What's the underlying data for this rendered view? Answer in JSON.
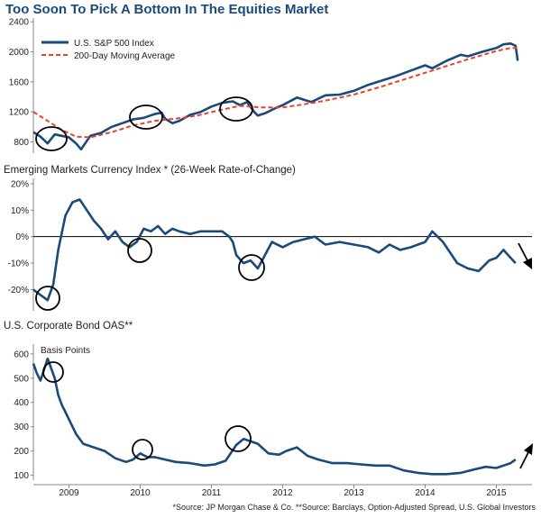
{
  "title": "Too Soon To Pick A Bottom In The Equities Market",
  "footer": "*Source: JP Morgan Chase & Co.  **Source: Barclays, Option-Adjusted Spread, U.S. Global Investors",
  "colors": {
    "series": "#1b4a7a",
    "moving_average": "#e8432e",
    "circle": "#000000",
    "axis": "#888888"
  },
  "chart_data": [
    {
      "type": "line",
      "title": "",
      "xlabel": "",
      "ylabel": "",
      "ylim": [
        650,
        2450
      ],
      "y_ticks": [
        800,
        1200,
        1600,
        2000,
        2400
      ],
      "grid": false,
      "legend": "top-left",
      "series": [
        {
          "name": "U.S. S&P 500 Index",
          "x": [
            2008.5,
            2008.6,
            2008.7,
            2008.8,
            2008.9,
            2009.0,
            2009.1,
            2009.17,
            2009.3,
            2009.45,
            2009.6,
            2009.75,
            2009.9,
            2010.05,
            2010.2,
            2010.3,
            2010.35,
            2010.45,
            2010.55,
            2010.7,
            2010.85,
            2011.0,
            2011.15,
            2011.3,
            2011.4,
            2011.5,
            2011.6,
            2011.65,
            2011.75,
            2011.9,
            2012.0,
            2012.2,
            2012.4,
            2012.6,
            2012.8,
            2013.0,
            2013.2,
            2013.4,
            2013.6,
            2013.8,
            2014.0,
            2014.1,
            2014.3,
            2014.5,
            2014.6,
            2014.8,
            2015.0,
            2015.1,
            2015.2,
            2015.27,
            2015.3
          ],
          "values": [
            930,
            870,
            780,
            900,
            880,
            860,
            780,
            700,
            880,
            920,
            1000,
            1050,
            1100,
            1120,
            1170,
            1190,
            1110,
            1050,
            1080,
            1160,
            1200,
            1270,
            1320,
            1340,
            1290,
            1330,
            1200,
            1150,
            1180,
            1250,
            1290,
            1390,
            1330,
            1420,
            1430,
            1480,
            1560,
            1620,
            1680,
            1750,
            1820,
            1780,
            1880,
            1960,
            1940,
            2000,
            2050,
            2100,
            2110,
            2080,
            1880
          ]
        },
        {
          "name": "200-Day Moving Average",
          "x": [
            2008.5,
            2008.7,
            2008.9,
            2009.1,
            2009.3,
            2009.6,
            2009.9,
            2010.2,
            2010.5,
            2010.8,
            2011.1,
            2011.4,
            2011.7,
            2012.0,
            2012.3,
            2012.6,
            2013.0,
            2013.4,
            2013.8,
            2014.2,
            2014.6,
            2015.0,
            2015.2,
            2015.3
          ],
          "values": [
            1200,
            1080,
            960,
            870,
            860,
            930,
            1020,
            1080,
            1110,
            1150,
            1220,
            1280,
            1260,
            1260,
            1300,
            1350,
            1430,
            1540,
            1660,
            1780,
            1900,
            2010,
            2050,
            2050
          ]
        }
      ],
      "annotations": [
        "circle 2009 bottom",
        "circle 2010 dip",
        "circle 2011 dip"
      ]
    },
    {
      "type": "line",
      "title": "Emerging Markets Currency Index * (26-Week Rate-of-Change)",
      "xlabel": "",
      "ylabel": "",
      "ylim": [
        -28,
        22
      ],
      "y_ticks": [
        20,
        10,
        0,
        -10,
        -20
      ],
      "y_tick_labels": [
        "20%",
        "10%",
        "0%",
        "-10%",
        "-20%"
      ],
      "grid": false,
      "zero_line": true,
      "series": [
        {
          "name": "",
          "x": [
            2008.5,
            2008.6,
            2008.7,
            2008.78,
            2008.85,
            2008.95,
            2009.05,
            2009.15,
            2009.25,
            2009.35,
            2009.45,
            2009.55,
            2009.65,
            2009.75,
            2009.85,
            2009.95,
            2010.05,
            2010.15,
            2010.25,
            2010.35,
            2010.45,
            2010.55,
            2010.7,
            2010.85,
            2011.0,
            2011.15,
            2011.25,
            2011.3,
            2011.35,
            2011.45,
            2011.55,
            2011.65,
            2011.75,
            2011.85,
            2012.0,
            2012.15,
            2012.3,
            2012.45,
            2012.6,
            2012.8,
            2013.0,
            2013.2,
            2013.35,
            2013.5,
            2013.65,
            2013.8,
            2014.0,
            2014.1,
            2014.25,
            2014.45,
            2014.6,
            2014.75,
            2014.9,
            2015.0,
            2015.1,
            2015.2,
            2015.27
          ],
          "values": [
            -20,
            -22,
            -24,
            -18,
            -5,
            8,
            13,
            14,
            10,
            6,
            3,
            -1,
            2,
            -2,
            -4,
            -2,
            3,
            2,
            4,
            1,
            3,
            2,
            1,
            2,
            2,
            2,
            0,
            -2,
            -7,
            -10,
            -9,
            -12,
            -7,
            -2,
            -4,
            -2,
            -1,
            0,
            -3,
            -2,
            -3,
            -4,
            -6,
            -3,
            -5,
            -4,
            -2,
            2,
            -2,
            -10,
            -12,
            -13,
            -9,
            -8,
            -5,
            -8,
            -10
          ]
        }
      ],
      "annotations": [
        "circle 2009 low",
        "circle 2010 dip",
        "circle 2011 dip",
        "arrow down"
      ]
    },
    {
      "type": "line",
      "title": "U.S. Corporate Bond OAS**",
      "xlabel": "",
      "ylabel": "Basis Points",
      "ylim": [
        80,
        640
      ],
      "y_ticks": [
        600,
        500,
        400,
        300,
        200,
        100
      ],
      "grid": false,
      "x_ticks": [
        "2009",
        "2010",
        "2011",
        "2012",
        "2013",
        "2014",
        "2015"
      ],
      "series": [
        {
          "name": "",
          "x": [
            2008.5,
            2008.55,
            2008.6,
            2008.7,
            2008.75,
            2008.8,
            2008.85,
            2008.9,
            2008.95,
            2009.0,
            2009.1,
            2009.2,
            2009.35,
            2009.5,
            2009.65,
            2009.8,
            2009.9,
            2010.0,
            2010.1,
            2010.2,
            2010.35,
            2010.5,
            2010.7,
            2010.9,
            2011.05,
            2011.2,
            2011.35,
            2011.45,
            2011.55,
            2011.65,
            2011.8,
            2011.95,
            2012.05,
            2012.2,
            2012.35,
            2012.5,
            2012.7,
            2012.9,
            2013.1,
            2013.3,
            2013.5,
            2013.7,
            2013.9,
            2014.1,
            2014.3,
            2014.5,
            2014.7,
            2014.85,
            2015.0,
            2015.1,
            2015.2,
            2015.27
          ],
          "values": [
            560,
            520,
            490,
            580,
            540,
            500,
            430,
            390,
            360,
            330,
            270,
            230,
            215,
            200,
            170,
            155,
            165,
            190,
            175,
            175,
            165,
            155,
            150,
            140,
            145,
            160,
            225,
            250,
            240,
            230,
            190,
            185,
            200,
            215,
            180,
            165,
            150,
            150,
            145,
            140,
            140,
            120,
            110,
            105,
            105,
            110,
            125,
            135,
            130,
            140,
            150,
            165
          ]
        }
      ],
      "annotations": [
        "circle 2008 peak",
        "circle 2010",
        "circle 2011",
        "arrow up"
      ]
    }
  ],
  "x_axis": {
    "min": 2008.5,
    "max": 2015.5,
    "ticks": [
      "2009",
      "2010",
      "2011",
      "2012",
      "2013",
      "2014",
      "2015"
    ],
    "tick_values": [
      2009,
      2010,
      2011,
      2012,
      2013,
      2014,
      2015
    ]
  }
}
